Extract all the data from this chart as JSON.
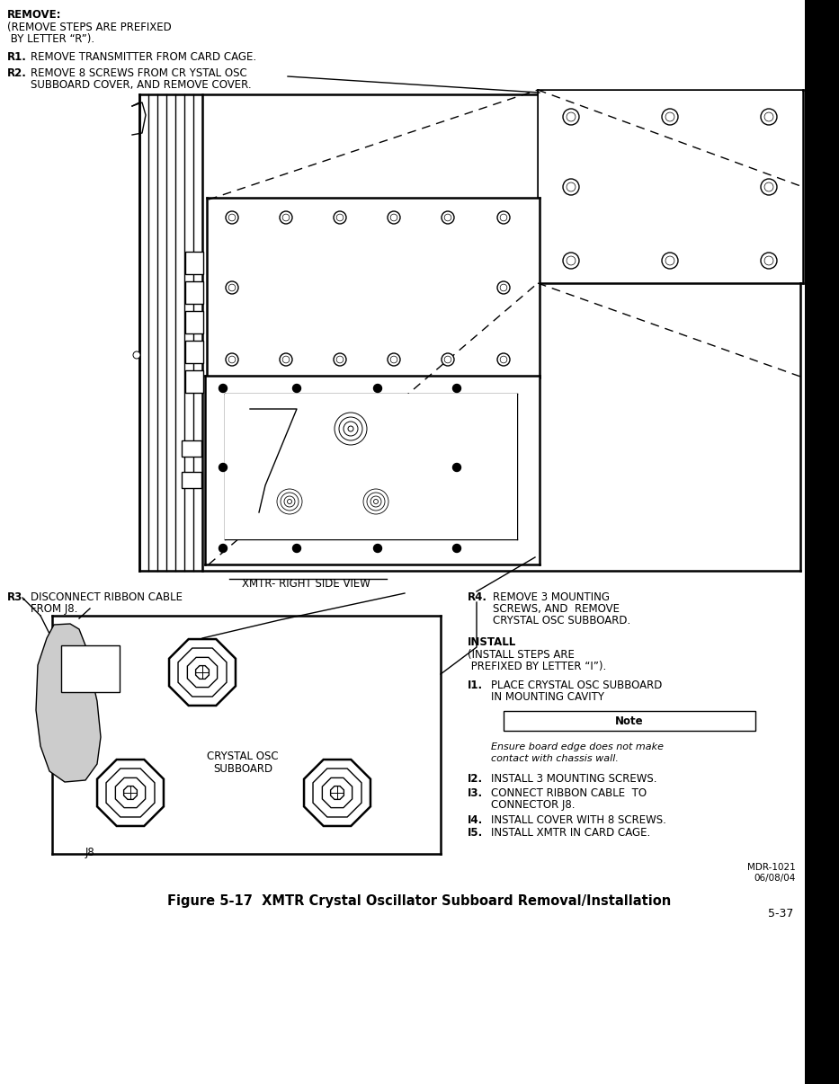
{
  "title": "Figure 5-17  XMTR Crystal Oscillator Subboard Removal/Installation",
  "page_num": "5-37",
  "doc_ref": "MDR-1021\n06/08/04",
  "bg_color": "#ffffff",
  "remove_header": "REMOVE:",
  "xmtr_label": "XMTR- RIGHT SIDE VIEW",
  "crystal_label_line1": "CRYSTAL OSC",
  "crystal_label_line2": "SUBBOARD",
  "j8_label": "J8",
  "note_label": "Note",
  "note_text_1": "Ensure board edge does not make",
  "note_text_2": "contact with chassis wall."
}
